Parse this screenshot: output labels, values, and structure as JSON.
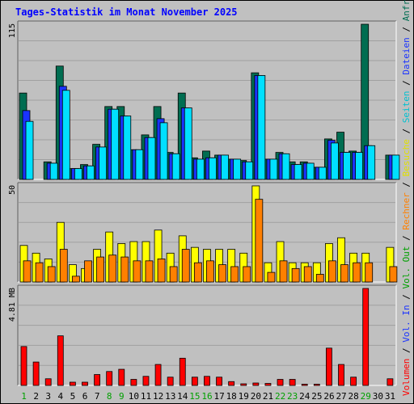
{
  "chart_data": {
    "type": "bar",
    "title": "Tages-Statistik im Monat November 2025",
    "days": [
      "1",
      "2",
      "3",
      "4",
      "5",
      "6",
      "7",
      "8",
      "9",
      "10",
      "11",
      "12",
      "13",
      "14",
      "15",
      "16",
      "17",
      "18",
      "19",
      "20",
      "21",
      "22",
      "23",
      "24",
      "25",
      "26",
      "27",
      "28",
      "29",
      "30",
      "31"
    ],
    "weekend_days": [
      1,
      8,
      9,
      15,
      16,
      22,
      23,
      29
    ],
    "top_panel": {
      "ymax_label": "115",
      "ymax": 115,
      "series": [
        {
          "name": "Anfragen",
          "color": "#006d51",
          "values": [
            64,
            0,
            13,
            84,
            8,
            11,
            26,
            54,
            54,
            22,
            33,
            54,
            20,
            64,
            16,
            21,
            18,
            15,
            14,
            79,
            15,
            20,
            13,
            13,
            9,
            30,
            35,
            21,
            115,
            0,
            18
          ]
        },
        {
          "name": "Dateien",
          "color": "#1a33ff",
          "values": [
            51,
            0,
            12,
            69,
            8,
            10,
            24,
            52,
            47,
            22,
            31,
            45,
            19,
            53,
            15,
            16,
            18,
            15,
            13,
            77,
            15,
            19,
            11,
            12,
            9,
            29,
            20,
            20,
            25,
            0,
            18
          ]
        },
        {
          "name": "Seiten",
          "color": "#00e0ff",
          "values": [
            43,
            0,
            12,
            66,
            8,
            10,
            24,
            52,
            47,
            22,
            31,
            42,
            19,
            53,
            15,
            16,
            18,
            15,
            13,
            77,
            15,
            19,
            11,
            12,
            9,
            27,
            20,
            20,
            25,
            0,
            18
          ]
        }
      ]
    },
    "middle_panel": {
      "ymax_label": "50",
      "ymax": 50,
      "series": [
        {
          "name": "Besuche",
          "color": "#ffff00",
          "values": [
            19,
            15,
            12,
            31,
            9,
            7,
            17,
            26,
            20,
            21,
            21,
            27,
            15,
            24,
            18,
            17,
            17,
            17,
            15,
            50,
            10,
            21,
            10,
            10,
            10,
            20,
            23,
            15,
            15,
            0,
            18
          ]
        },
        {
          "name": "Rechner",
          "color": "#ff8000",
          "values": [
            11,
            10,
            8,
            17,
            3,
            11,
            13,
            14,
            13,
            11,
            11,
            12,
            8,
            17,
            10,
            11,
            9,
            8,
            8,
            43,
            5,
            11,
            7,
            8,
            4,
            11,
            9,
            10,
            10,
            0,
            8
          ]
        }
      ]
    },
    "bottom_panel": {
      "ymax_label": "4.81 MB",
      "ymax": 4.81,
      "series": [
        {
          "name": "Volumen",
          "color": "#ff0000",
          "values": [
            1.93,
            1.16,
            0.33,
            2.46,
            0.16,
            0.16,
            0.54,
            0.69,
            0.8,
            0.3,
            0.45,
            1.04,
            0.41,
            1.35,
            0.41,
            0.45,
            0.41,
            0.19,
            0.08,
            0.12,
            0.1,
            0.3,
            0.3,
            0.06,
            0.06,
            1.85,
            1.04,
            0.41,
            4.81,
            0,
            0.33
          ]
        },
        {
          "name": "Vol. In",
          "color": "#1a33ff",
          "values": []
        },
        {
          "name": "Vol. Out",
          "color": "#00a000",
          "values": []
        }
      ]
    },
    "right_legend": [
      {
        "label": "Volumen",
        "color": "#ff0000"
      },
      {
        "label": "Vol. In",
        "color": "#1a33ff"
      },
      {
        "label": "Vol. Out",
        "color": "#00a000"
      },
      {
        "label": "Rechner",
        "color": "#ff8000"
      },
      {
        "label": "Besuche",
        "color": "#e0e000"
      },
      {
        "label": "Seiten",
        "color": "#00c0d0"
      },
      {
        "label": "Dateien",
        "color": "#1a33ff"
      },
      {
        "label": "Anfragen",
        "color": "#006d51"
      }
    ],
    "legend_separator": "/",
    "colors": {
      "background": "#c0c0c0",
      "title": "#0000ff",
      "day_label": "#000000",
      "weekend_label": "#00a000",
      "gridline": "#a0a0a0"
    }
  }
}
